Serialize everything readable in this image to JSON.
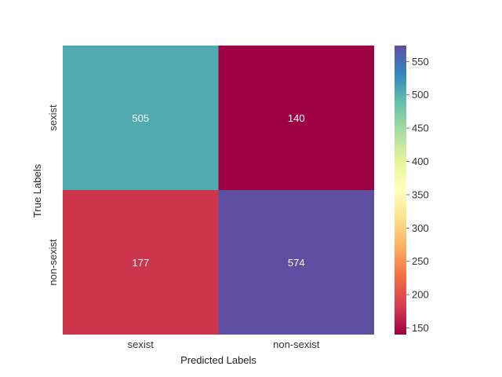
{
  "chart_data": {
    "type": "heatmap",
    "xlabel": "Predicted Labels",
    "ylabel": "True Labels",
    "x_categories": [
      "sexist",
      "non-sexist"
    ],
    "y_categories": [
      "sexist",
      "non-sexist"
    ],
    "values": [
      [
        505,
        140
      ],
      [
        177,
        574
      ]
    ],
    "colormap": "Spectral",
    "color_range": [
      140,
      574
    ],
    "colorbar_ticks": [
      150,
      200,
      250,
      300,
      350,
      400,
      450,
      500,
      550
    ],
    "grid": false,
    "legend": "colorbar-right"
  }
}
